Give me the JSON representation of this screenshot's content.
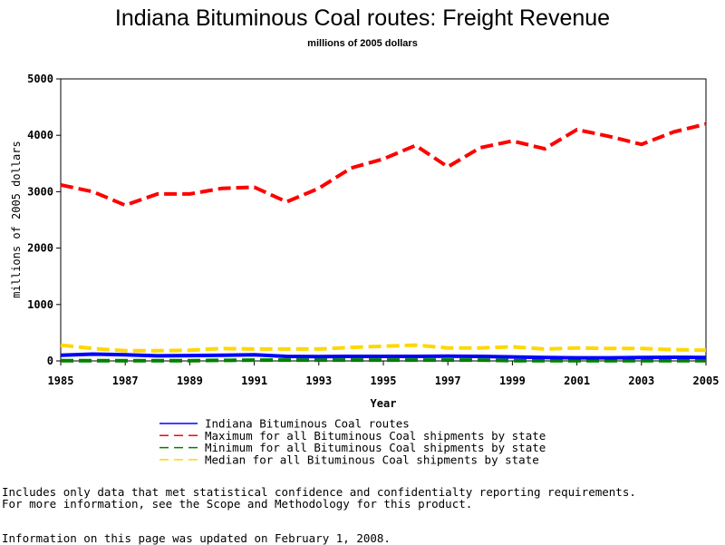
{
  "chart_data": {
    "type": "line",
    "title": "Indiana Bituminous Coal routes: Freight Revenue",
    "subtitle": "millions of 2005 dollars",
    "xlabel": "Year",
    "ylabel": "millions of 2005 dollars",
    "xlim": [
      1985,
      2005
    ],
    "ylim": [
      0,
      5000
    ],
    "x_ticks": [
      1985,
      1987,
      1989,
      1991,
      1993,
      1995,
      1997,
      1999,
      2001,
      2003,
      2005
    ],
    "y_ticks": [
      0,
      1000,
      2000,
      3000,
      4000,
      5000
    ],
    "x": [
      1985,
      1986,
      1987,
      1988,
      1989,
      1990,
      1991,
      1992,
      1993,
      1994,
      1995,
      1996,
      1997,
      1998,
      1999,
      2000,
      2001,
      2002,
      2003,
      2004,
      2005
    ],
    "series": [
      {
        "name": "Indiana Bituminous Coal routes",
        "color": "#0000ff",
        "style": "solid",
        "values": [
          100,
          120,
          110,
          90,
          95,
          100,
          110,
          80,
          75,
          80,
          80,
          80,
          85,
          80,
          70,
          60,
          55,
          55,
          60,
          65,
          60
        ]
      },
      {
        "name": "Maximum for all Bituminous Coal shipments by state",
        "color": "#ff0000",
        "style": "dashed",
        "values": [
          3120,
          3000,
          2760,
          2960,
          2960,
          3060,
          3080,
          2820,
          3060,
          3420,
          3580,
          3820,
          3440,
          3780,
          3900,
          3760,
          4100,
          3980,
          3840,
          4060,
          4200
        ]
      },
      {
        "name": "Minimum for all Bituminous Coal shipments by state",
        "color": "#008000",
        "style": "dashed",
        "values": [
          5,
          5,
          5,
          5,
          5,
          10,
          15,
          15,
          15,
          15,
          15,
          15,
          15,
          15,
          5,
          5,
          5,
          5,
          5,
          5,
          5
        ]
      },
      {
        "name": "Median for all Bituminous Coal shipments by state",
        "color": "#ffd700",
        "style": "dashed",
        "values": [
          280,
          220,
          180,
          180,
          190,
          220,
          210,
          210,
          210,
          240,
          260,
          280,
          230,
          230,
          250,
          210,
          230,
          220,
          220,
          200,
          190
        ]
      }
    ],
    "legend_position": "bottom",
    "grid": false
  },
  "footnotes": {
    "line1": "Includes only data that met statistical confidence and confidentialty reporting requirements.",
    "line2": "For more information, see the Scope and Methodology for this product.",
    "line3": "Information on this page was updated on February 1, 2008."
  }
}
